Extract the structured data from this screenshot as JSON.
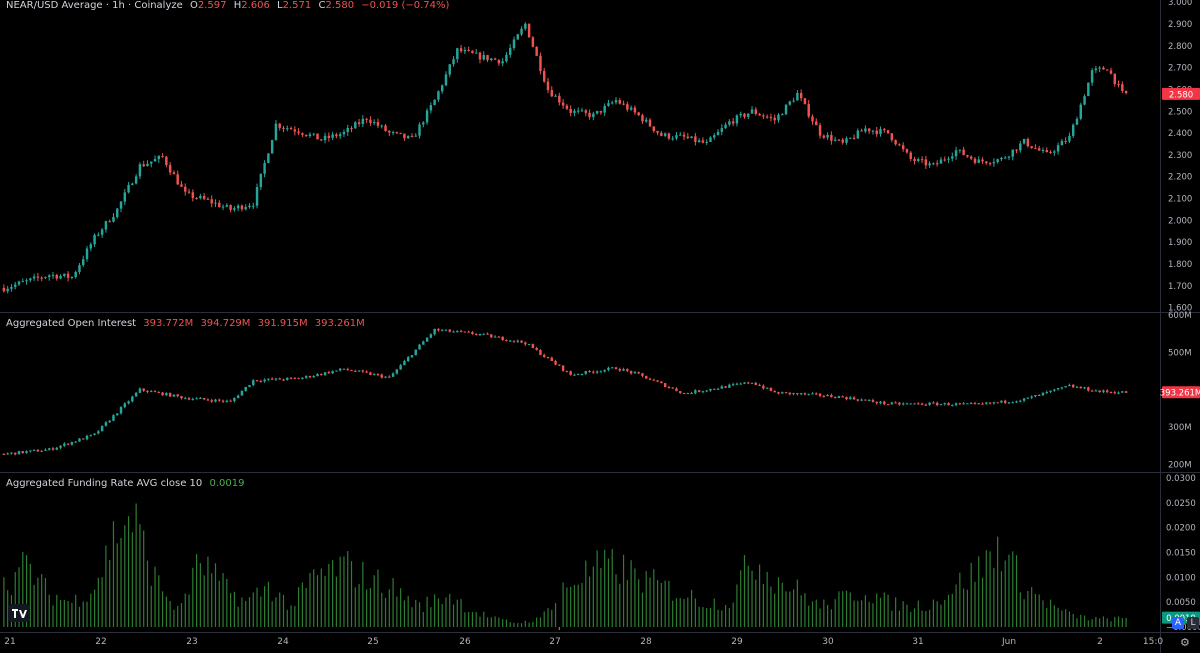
{
  "colors": {
    "up": "#26a69a",
    "down": "#ef5350",
    "grid": "#2a2e39",
    "fund_up": "#2e7d32",
    "price_tag": "#f23645",
    "oi_tag": "#f23645",
    "fund_tag": "#089981"
  },
  "legend": {
    "price": {
      "symbol": "NEAR/USD Average · 1h · Coinalyze",
      "o_label": "O",
      "o": "2.597",
      "h_label": "H",
      "h": "2.606",
      "l_label": "L",
      "l": "2.571",
      "c_label": "C",
      "c": "2.580",
      "chg": "−0.019 (−0.74%)"
    },
    "oi": {
      "name": "Aggregated Open Interest",
      "o": "393.772M",
      "h": "394.729M",
      "l": "391.915M",
      "c": "393.261M"
    },
    "funding": {
      "name": "Aggregated Funding Rate AVG close 10",
      "value": "0.0019"
    }
  },
  "tags": {
    "price": "2.580",
    "oi": "393.261M",
    "funding": "0.0019"
  },
  "badges": {
    "a": "A",
    "l": "L"
  },
  "chart_data": [
    {
      "type": "candlestick",
      "title": "NEAR/USD Average · 1h · Coinalyze",
      "y_ticks": [
        "3.000",
        "2.900",
        "2.800",
        "2.700",
        "2.600",
        "2.500",
        "2.400",
        "2.300",
        "2.200",
        "2.100",
        "2.000",
        "1.900",
        "1.800",
        "1.700",
        "1.600"
      ],
      "ylim": [
        1.58,
        3.01
      ],
      "x_ticks": [
        "21",
        "22",
        "23",
        "24",
        "25",
        "26",
        "27",
        "28",
        "29",
        "30",
        "31",
        "Jun",
        "2",
        "15:0"
      ],
      "close_path": [
        [
          0,
          1.69
        ],
        [
          6,
          1.72
        ],
        [
          12,
          1.75
        ],
        [
          18,
          1.74
        ],
        [
          24,
          1.92
        ],
        [
          30,
          2.05
        ],
        [
          36,
          2.25
        ],
        [
          42,
          2.29
        ],
        [
          48,
          2.12
        ],
        [
          54,
          2.09
        ],
        [
          60,
          2.05
        ],
        [
          66,
          2.08
        ],
        [
          72,
          2.44
        ],
        [
          78,
          2.41
        ],
        [
          84,
          2.37
        ],
        [
          90,
          2.4
        ],
        [
          96,
          2.47
        ],
        [
          102,
          2.4
        ],
        [
          108,
          2.37
        ],
        [
          114,
          2.55
        ],
        [
          120,
          2.78
        ],
        [
          126,
          2.75
        ],
        [
          132,
          2.73
        ],
        [
          138,
          2.9
        ],
        [
          144,
          2.6
        ],
        [
          150,
          2.5
        ],
        [
          156,
          2.48
        ],
        [
          162,
          2.55
        ],
        [
          168,
          2.48
        ],
        [
          174,
          2.39
        ],
        [
          180,
          2.38
        ],
        [
          186,
          2.35
        ],
        [
          192,
          2.45
        ],
        [
          198,
          2.5
        ],
        [
          204,
          2.46
        ],
        [
          210,
          2.58
        ],
        [
          216,
          2.4
        ],
        [
          222,
          2.35
        ],
        [
          228,
          2.42
        ],
        [
          234,
          2.4
        ],
        [
          240,
          2.28
        ],
        [
          246,
          2.25
        ],
        [
          252,
          2.32
        ],
        [
          258,
          2.27
        ],
        [
          264,
          2.28
        ],
        [
          270,
          2.36
        ],
        [
          276,
          2.3
        ],
        [
          282,
          2.38
        ],
        [
          288,
          2.68
        ],
        [
          292,
          2.7
        ],
        [
          296,
          2.58
        ]
      ]
    },
    {
      "type": "candlestick",
      "title": "Aggregated Open Interest",
      "y_ticks": [
        "600M",
        "500M",
        "300M",
        "200M"
      ],
      "ylim": [
        180,
        605
      ],
      "close_path": [
        [
          0,
          228
        ],
        [
          12,
          240
        ],
        [
          24,
          280
        ],
        [
          36,
          400
        ],
        [
          48,
          378
        ],
        [
          60,
          368
        ],
        [
          66,
          425
        ],
        [
          78,
          430
        ],
        [
          90,
          455
        ],
        [
          102,
          432
        ],
        [
          114,
          560
        ],
        [
          126,
          548
        ],
        [
          138,
          525
        ],
        [
          150,
          440
        ],
        [
          162,
          458
        ],
        [
          168,
          440
        ],
        [
          180,
          390
        ],
        [
          192,
          410
        ],
        [
          198,
          420
        ],
        [
          204,
          392
        ],
        [
          216,
          385
        ],
        [
          222,
          380
        ],
        [
          234,
          362
        ],
        [
          246,
          362
        ],
        [
          258,
          360
        ],
        [
          270,
          374
        ],
        [
          282,
          410
        ],
        [
          290,
          395
        ],
        [
          296,
          393
        ]
      ]
    },
    {
      "type": "bar",
      "title": "Aggregated Funding Rate AVG close 10",
      "y_ticks": [
        "0.0300",
        "0.0250",
        "0.0200",
        "0.0150",
        "0.0100",
        "0.0050",
        "0.0019",
        "−0.0000"
      ],
      "ylim": [
        -0.001,
        0.031
      ],
      "profile": [
        [
          0,
          0.01
        ],
        [
          6,
          0.015
        ],
        [
          12,
          0.008
        ],
        [
          18,
          0.006
        ],
        [
          24,
          0.01
        ],
        [
          30,
          0.024
        ],
        [
          34,
          0.027
        ],
        [
          40,
          0.012
        ],
        [
          46,
          0.004
        ],
        [
          52,
          0.016
        ],
        [
          58,
          0.01
        ],
        [
          64,
          0.006
        ],
        [
          70,
          0.01
        ],
        [
          76,
          0.005
        ],
        [
          82,
          0.012
        ],
        [
          90,
          0.015
        ],
        [
          96,
          0.012
        ],
        [
          102,
          0.01
        ],
        [
          110,
          0.005
        ],
        [
          118,
          0.008
        ],
        [
          124,
          0.004
        ],
        [
          130,
          0.002
        ],
        [
          136,
          0.001
        ],
        [
          142,
          0.002
        ],
        [
          148,
          0.01
        ],
        [
          156,
          0.014
        ],
        [
          162,
          0.015
        ],
        [
          168,
          0.012
        ],
        [
          174,
          0.01
        ],
        [
          180,
          0.008
        ],
        [
          186,
          0.006
        ],
        [
          192,
          0.006
        ],
        [
          198,
          0.017
        ],
        [
          204,
          0.012
        ],
        [
          210,
          0.009
        ],
        [
          216,
          0.005
        ],
        [
          222,
          0.007
        ],
        [
          228,
          0.009
        ],
        [
          234,
          0.006
        ],
        [
          240,
          0.005
        ],
        [
          246,
          0.006
        ],
        [
          252,
          0.01
        ],
        [
          258,
          0.014
        ],
        [
          264,
          0.02
        ],
        [
          270,
          0.01
        ],
        [
          276,
          0.006
        ],
        [
          282,
          0.003
        ],
        [
          288,
          0.002
        ],
        [
          296,
          0.002
        ]
      ]
    }
  ]
}
